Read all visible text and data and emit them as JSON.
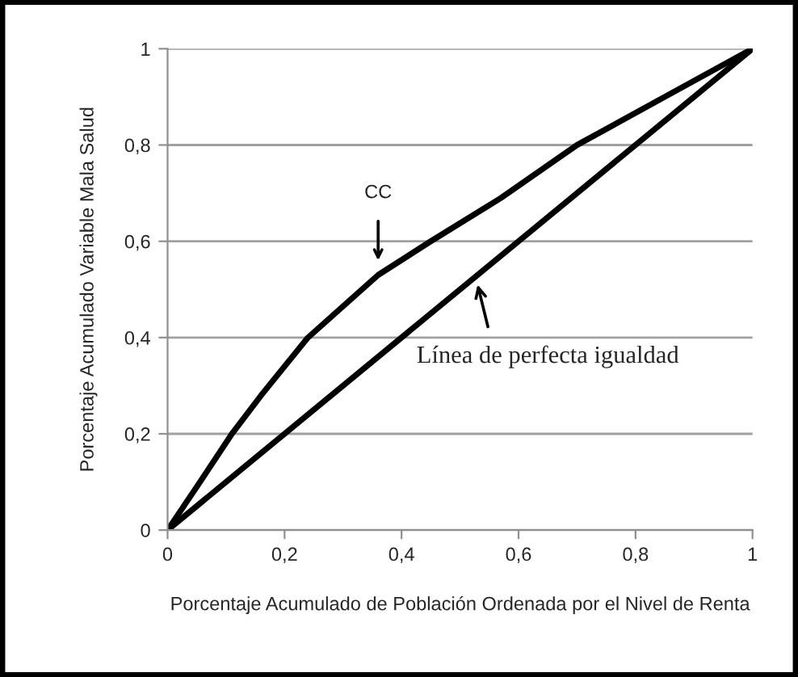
{
  "chart_data": {
    "type": "line",
    "xlabel": "Porcentaje Acumulado de Población Ordenada por el Nivel de Renta",
    "ylabel": "Porcentaje Acumulado Variable Mala Salud",
    "series": [
      {
        "color": "#000000",
        "x": [
          0,
          0.05,
          0.11,
          0.16,
          0.24,
          0.36,
          0.45,
          0.57,
          0.7,
          0.85,
          1
        ],
        "values": [
          0,
          0.09,
          0.2,
          0.28,
          0.4,
          0.53,
          0.6,
          0.69,
          0.8,
          0.9,
          1
        ]
      },
      {
        "color": "#000000",
        "x": [
          0,
          1
        ],
        "values": [
          0,
          1
        ]
      }
    ],
    "annotations": [
      {
        "text": "CC",
        "x": 0.36,
        "y": 0.54
      },
      {
        "text": "Línea de perfecta igualdad",
        "x": 0.53,
        "y": 0.53
      }
    ],
    "xlim": [
      0,
      1
    ],
    "ylim": [
      0,
      1
    ],
    "xticks": [
      0,
      {
        "value": 0.2,
        "label": "0,2"
      },
      {
        "value": 0.4,
        "label": "0,4"
      },
      {
        "value": 0.6,
        "label": "0,6"
      },
      {
        "value": 0.8,
        "label": "0,8"
      },
      1
    ],
    "yticks": [
      0,
      {
        "value": 0.2,
        "label": "0,2"
      },
      {
        "value": 0.4,
        "label": "0,4"
      },
      {
        "value": 0.6,
        "label": "0,6"
      },
      {
        "value": 0.8,
        "label": "0,8"
      },
      1
    ],
    "grid": "y",
    "legend": false,
    "marker": "none",
    "line_style": "solid"
  }
}
